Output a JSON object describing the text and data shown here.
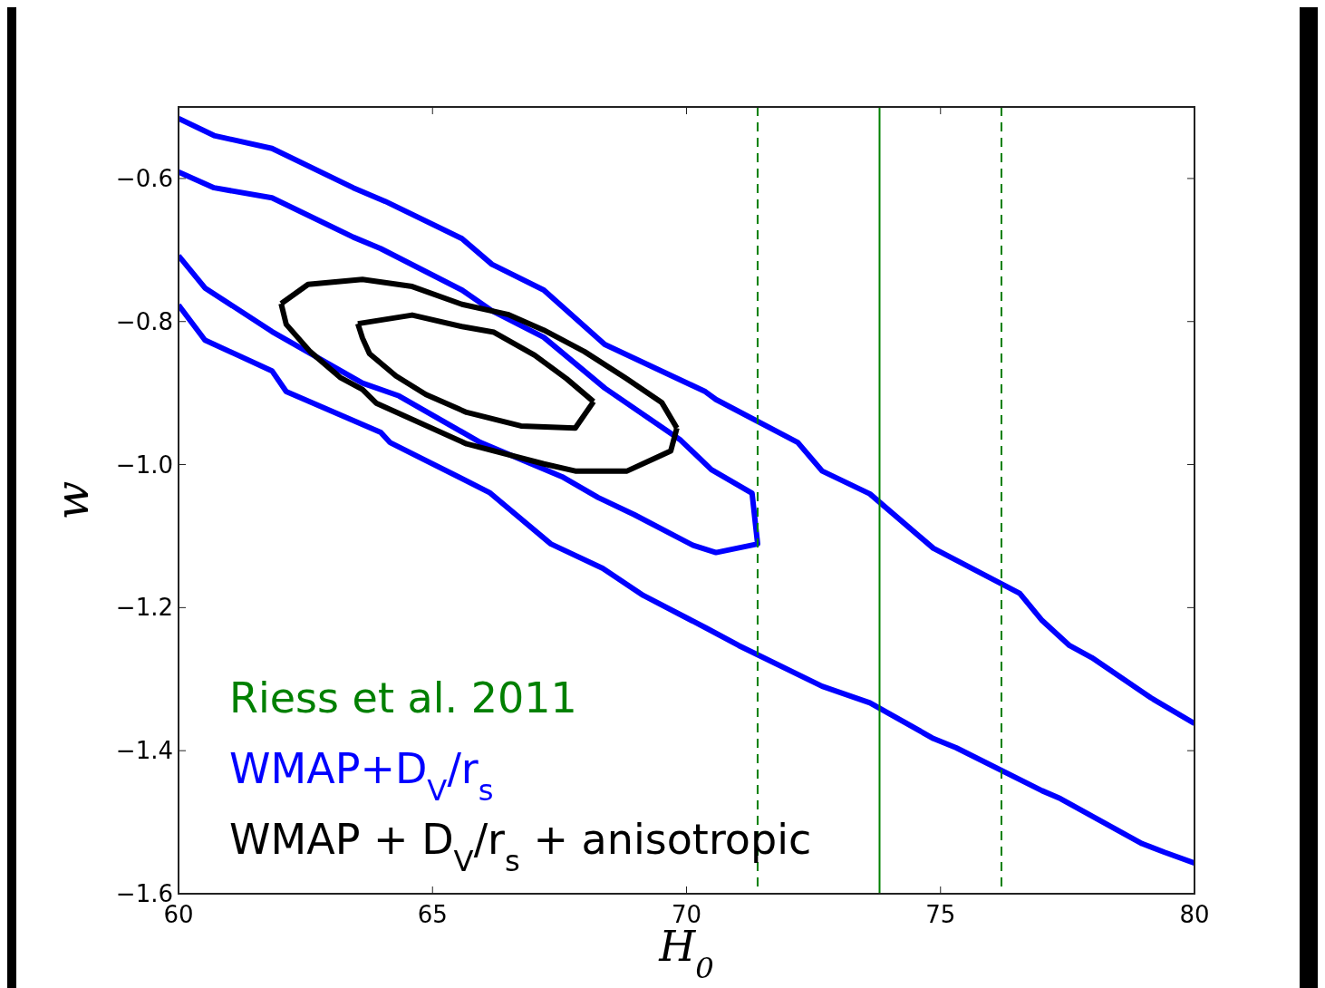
{
  "chart_data": {
    "type": "line",
    "xlabel": "H$_{0}$",
    "ylabel": "w",
    "xlim": [
      60,
      80
    ],
    "ylim": [
      -1.6,
      -0.5
    ],
    "xticks": [
      60,
      65,
      70,
      75,
      80
    ],
    "yticks": [
      {
        "value": -1.6,
        "label": "−1.6"
      },
      {
        "value": -1.4,
        "label": "−1.4"
      },
      {
        "value": -1.2,
        "label": "−1.2"
      },
      {
        "value": -1.0,
        "label": "−1.0"
      },
      {
        "value": -0.8,
        "label": "−0.8"
      },
      {
        "value": -0.6,
        "label": "−0.6"
      }
    ],
    "legend": "bottom left",
    "grid": false,
    "marker": "none",
    "line_style": "solid",
    "series": [
      {
        "name": "WMAP+D$_{V}$/r$_{s}$",
        "color": "#0000ff",
        "x": [
          60,
          60.7,
          61.84,
          63.44,
          64.07,
          65.58,
          66.17,
          67.19,
          68.39,
          70.37,
          70.58,
          72.19,
          72.67,
          73.61,
          74.86,
          76.56,
          77.0,
          77.54,
          77.98,
          79.14,
          80
        ],
        "values": [
          -0.516,
          -0.54,
          -0.558,
          -0.613,
          -0.632,
          -0.684,
          -0.72,
          -0.756,
          -0.832,
          -0.898,
          -0.909,
          -0.969,
          -1.009,
          -1.041,
          -1.117,
          -1.18,
          -1.218,
          -1.253,
          -1.27,
          -1.326,
          -1.362
        ]
      },
      {
        "color": "#0000ff",
        "x": [
          60,
          60.52,
          61.84,
          62.12,
          63.98,
          64.16,
          66.12,
          67.33,
          68.35,
          69.15,
          70.4,
          71.03,
          72.67,
          73.61,
          74.86,
          75.31,
          77.0,
          77.36,
          78.97,
          79.41,
          80
        ],
        "values": [
          -0.777,
          -0.826,
          -0.869,
          -0.898,
          -0.955,
          -0.969,
          -1.039,
          -1.111,
          -1.145,
          -1.183,
          -1.229,
          -1.253,
          -1.31,
          -1.333,
          -1.383,
          -1.396,
          -1.456,
          -1.467,
          -1.53,
          -1.542,
          -1.557
        ]
      },
      {
        "color": "#0000ff",
        "x": [
          60,
          60.7,
          61.84,
          63.44,
          63.98,
          65.58,
          66.17,
          67.19,
          68.39,
          69.87,
          70.49,
          71.29,
          71.4,
          70.58,
          70.13,
          68.97,
          68.26,
          67.55,
          65.94,
          64.34,
          63.62,
          61.84,
          60.52,
          60
        ],
        "values": [
          -0.591,
          -0.613,
          -0.627,
          -0.682,
          -0.698,
          -0.756,
          -0.785,
          -0.822,
          -0.893,
          -0.965,
          -1.007,
          -1.04,
          -1.111,
          -1.123,
          -1.113,
          -1.07,
          -1.046,
          -1.017,
          -0.969,
          -0.904,
          -0.886,
          -0.814,
          -0.753,
          -0.708
        ]
      },
      {
        "name": "WMAP + D$_{V}$/r$_{s}$ + anisotropic",
        "color": "#000000",
        "x": [
          62.02,
          62.12,
          62.59,
          63.18,
          63.62,
          63.89,
          65.67,
          67.19,
          67.81,
          68.83,
          69.69,
          69.81
        ],
        "values": [
          -0.775,
          -0.804,
          -0.842,
          -0.878,
          -0.895,
          -0.914,
          -0.971,
          -0.999,
          -1.009,
          -1.009,
          -0.981,
          -0.949
        ]
      },
      {
        "color": "#000000",
        "x": [
          69.81,
          69.51,
          68.8,
          67.99,
          67.19,
          66.48,
          65.58,
          64.6,
          63.62,
          62.55,
          62.02
        ],
        "values": [
          -0.949,
          -0.913,
          -0.879,
          -0.842,
          -0.812,
          -0.79,
          -0.776,
          -0.751,
          -0.741,
          -0.748,
          -0.775
        ]
      },
      {
        "color": "#000000",
        "x": [
          63.53,
          63.62,
          63.76,
          64.28,
          64.87,
          65.67,
          66.74,
          67.81,
          68.17
        ],
        "values": [
          -0.803,
          -0.823,
          -0.845,
          -0.876,
          -0.902,
          -0.927,
          -0.946,
          -0.949,
          -0.912
        ]
      },
      {
        "color": "#000000",
        "x": [
          68.17,
          67.64,
          67.01,
          66.21,
          65.58,
          64.6,
          63.98,
          63.53
        ],
        "values": [
          -0.912,
          -0.88,
          -0.847,
          -0.815,
          -0.807,
          -0.791,
          -0.798,
          -0.803
        ]
      }
    ],
    "ref_lines": [
      {
        "axis": "x",
        "value": 71.4,
        "color": "#008000",
        "line_style": "dashed"
      },
      {
        "axis": "x",
        "value": 73.8,
        "label": "Riess et al. 2011",
        "color": "#008000",
        "line_style": "solid"
      },
      {
        "axis": "x",
        "value": 76.2,
        "color": "#008000",
        "line_style": "dashed"
      }
    ]
  }
}
